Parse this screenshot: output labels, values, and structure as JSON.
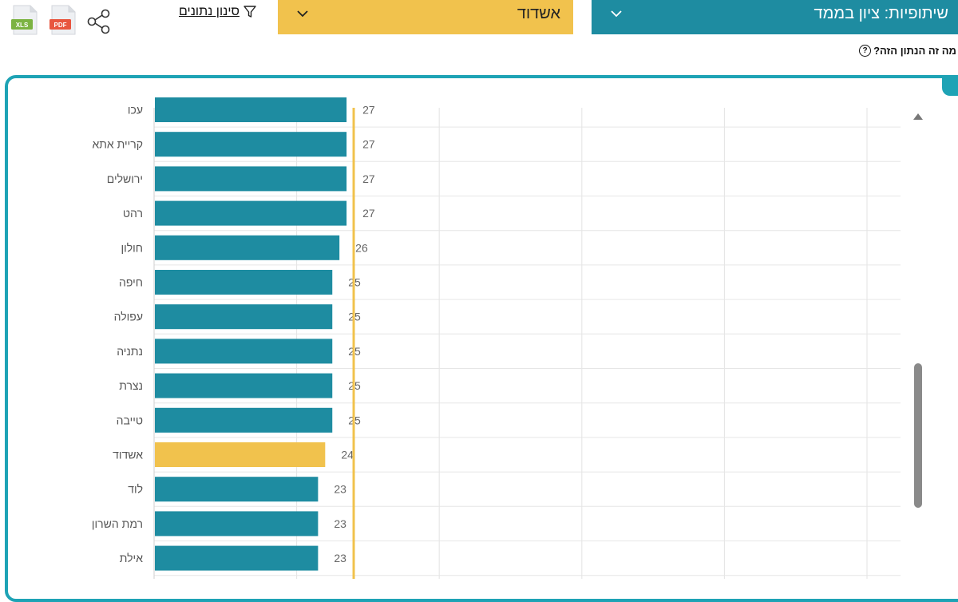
{
  "header": {
    "metric_label": "שיתופיות: ציון בממד",
    "city_label": "אשדוד",
    "filter_label": "סינון נתונים",
    "xls_label": "XLS",
    "pdf_label": "PDF"
  },
  "help": {
    "text": "מה זה הנתון הזה?",
    "icon_glyph": "?"
  },
  "colors": {
    "teal": "#1e8ca1",
    "yellow": "#f1c24d",
    "panel_border": "#1ea3b5",
    "bar": "#1e8ca1",
    "highlight_bar": "#f1c24d"
  },
  "chart_data": {
    "type": "bar",
    "orientation": "horizontal",
    "categories": [
      "עכו",
      "קריית אתא",
      "ירושלים",
      "רהט",
      "חולון",
      "חיפה",
      "עפולה",
      "נתניה",
      "נצרת",
      "טייבה",
      "אשדוד",
      "לוד",
      "רמת השרון",
      "אילת"
    ],
    "values": [
      27,
      27,
      27,
      27,
      26,
      25,
      25,
      25,
      25,
      25,
      24,
      23,
      23,
      23
    ],
    "highlight": "אשדוד",
    "reference_value": 28,
    "xlim": [
      0,
      100
    ],
    "grid": true
  }
}
